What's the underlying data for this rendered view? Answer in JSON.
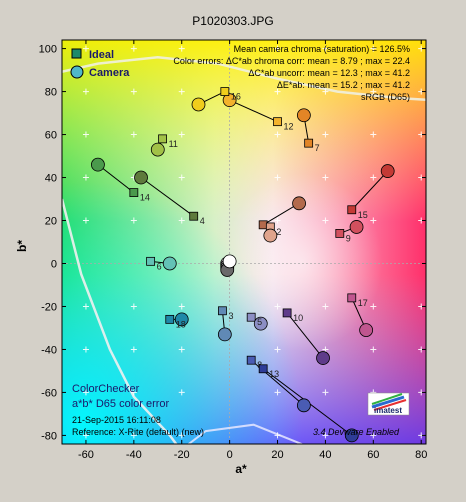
{
  "chart_data": {
    "type": "scatter",
    "title": "P1020303.JPG",
    "xlabel": "a*",
    "ylabel": "b*",
    "xlim": [
      -70,
      82
    ],
    "ylim": [
      -84,
      104
    ],
    "xticks": [
      -60,
      -40,
      -20,
      0,
      20,
      40,
      60,
      80
    ],
    "yticks": [
      -80,
      -60,
      -40,
      -20,
      0,
      20,
      40,
      60,
      80,
      100
    ],
    "grid": true,
    "legend": {
      "placement": "top-left",
      "entries": [
        {
          "label": "Ideal",
          "marker": "square"
        },
        {
          "label": "Camera",
          "marker": "circle"
        }
      ]
    },
    "stats": [
      "Mean camera chroma (saturation) = 126.5%",
      "Color errors:  ΔC*ab chroma corr:  mean = 8.79 ;  max = 22.4",
      "ΔC*ab uncorr:  mean = 12.3 ;  max = 41.2",
      "ΔE*ab:  mean = 15.2 ;  max = 41.2",
      "sRGB (D65)"
    ],
    "notes": [
      "ColorChecker",
      "a*b* D65 color error",
      "21-Sep-2015 16:11:08",
      "Reference: X-Rite (default) (new)"
    ],
    "footer_text": "3.4  Devware Enabled",
    "logo_text": "imatest",
    "patches": [
      {
        "id": "1",
        "ideal": [
          14,
          18
        ],
        "camera": [
          29,
          28
        ],
        "color": "#b36a4c"
      },
      {
        "id": "2",
        "ideal": [
          17,
          17
        ],
        "camera": [
          17,
          13
        ],
        "color": "#e0a48c"
      },
      {
        "id": "3",
        "ideal": [
          -3,
          -22
        ],
        "camera": [
          -2,
          -33
        ],
        "color": "#6089b5"
      },
      {
        "id": "4",
        "ideal": [
          -15,
          22
        ],
        "camera": [
          -37,
          40
        ],
        "color": "#5e7a3c"
      },
      {
        "id": "5",
        "ideal": [
          9,
          -25
        ],
        "camera": [
          13,
          -28
        ],
        "color": "#8c8ec4"
      },
      {
        "id": "6",
        "ideal": [
          -33,
          1
        ],
        "camera": [
          -25,
          0
        ],
        "color": "#63c2b6"
      },
      {
        "id": "7",
        "ideal": [
          33,
          56
        ],
        "camera": [
          31,
          69
        ],
        "color": "#e28526"
      },
      {
        "id": "8",
        "ideal": [
          9,
          -45
        ],
        "camera": [
          31,
          -66
        ],
        "color": "#4a5cb3"
      },
      {
        "id": "9",
        "ideal": [
          46,
          14
        ],
        "camera": [
          53,
          17
        ],
        "color": "#d2505e"
      },
      {
        "id": "10",
        "ideal": [
          24,
          -23
        ],
        "camera": [
          39,
          -44
        ],
        "color": "#5f3b8a"
      },
      {
        "id": "11",
        "ideal": [
          -28,
          58
        ],
        "camera": [
          -30,
          53
        ],
        "color": "#a2c147"
      },
      {
        "id": "12",
        "ideal": [
          20,
          66
        ],
        "camera": [
          0,
          76
        ],
        "color": "#f3b22c"
      },
      {
        "id": "13",
        "ideal": [
          14,
          -49
        ],
        "camera": [
          51,
          -80
        ],
        "color": "#2e3c98"
      },
      {
        "id": "14",
        "ideal": [
          -40,
          33
        ],
        "camera": [
          -55,
          46
        ],
        "color": "#4a9a4c"
      },
      {
        "id": "15",
        "ideal": [
          51,
          25
        ],
        "camera": [
          66,
          43
        ],
        "color": "#c43a35"
      },
      {
        "id": "16",
        "ideal": [
          -2,
          80
        ],
        "camera": [
          -13,
          74
        ],
        "color": "#f0cd1c"
      },
      {
        "id": "17",
        "ideal": [
          51,
          -16
        ],
        "camera": [
          57,
          -31
        ],
        "color": "#c0568f"
      },
      {
        "id": "18",
        "ideal": [
          -25,
          -26
        ],
        "camera": [
          -20,
          -26
        ],
        "color": "#1f88a8"
      }
    ],
    "neutrals_camera": [
      [
        -1,
        0
      ],
      [
        -1,
        -1
      ],
      [
        -1,
        -2
      ],
      [
        -1,
        -3
      ],
      [
        0,
        1
      ]
    ]
  }
}
